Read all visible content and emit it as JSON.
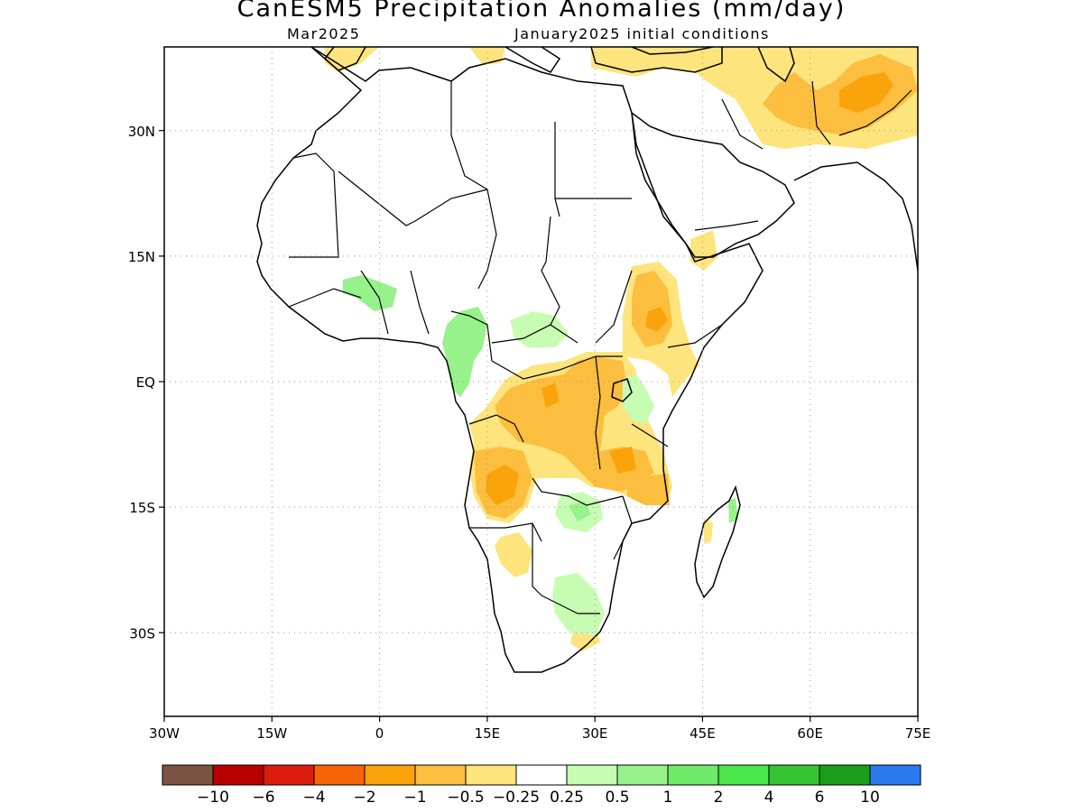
{
  "title": "CanESM5 Precipitation Anomalies (mm/day)",
  "valid_month": "Mar2025",
  "initial_conditions": "January2025 initial conditions",
  "lon_ticks": [
    "30W",
    "15W",
    "0",
    "15E",
    "30E",
    "45E",
    "60E",
    "75E"
  ],
  "lat_ticks": [
    "30N",
    "15N",
    "EQ",
    "15S",
    "30S"
  ],
  "map_extent": {
    "lon": [
      -30,
      75
    ],
    "lat": [
      -40,
      40
    ]
  },
  "grid": "dotted",
  "colorbar": {
    "colors": [
      "#7b5343",
      "#b80000",
      "#dc1c0c",
      "#f86408",
      "#fba30a",
      "#fbbe3e",
      "#fde47c",
      "#ffffff",
      "#c7fcb3",
      "#97f28b",
      "#70ea68",
      "#4ae64b",
      "#34c434",
      "#1a9e1a",
      "#2a79ee"
    ],
    "labels": [
      "−10",
      "−6",
      "−4",
      "−2",
      "−1",
      "−0.5",
      "−0.25",
      "0.25",
      "0.5",
      "1",
      "2",
      "4",
      "6",
      "10"
    ]
  },
  "anomaly_fill": {
    "dry_light": "#fde47c",
    "dry_mid": "#fbbe3e",
    "dry_strong": "#fba30a",
    "wet_light": "#c7fcb3",
    "wet_mid": "#97f28b",
    "wet_strong": "#70ea68"
  }
}
